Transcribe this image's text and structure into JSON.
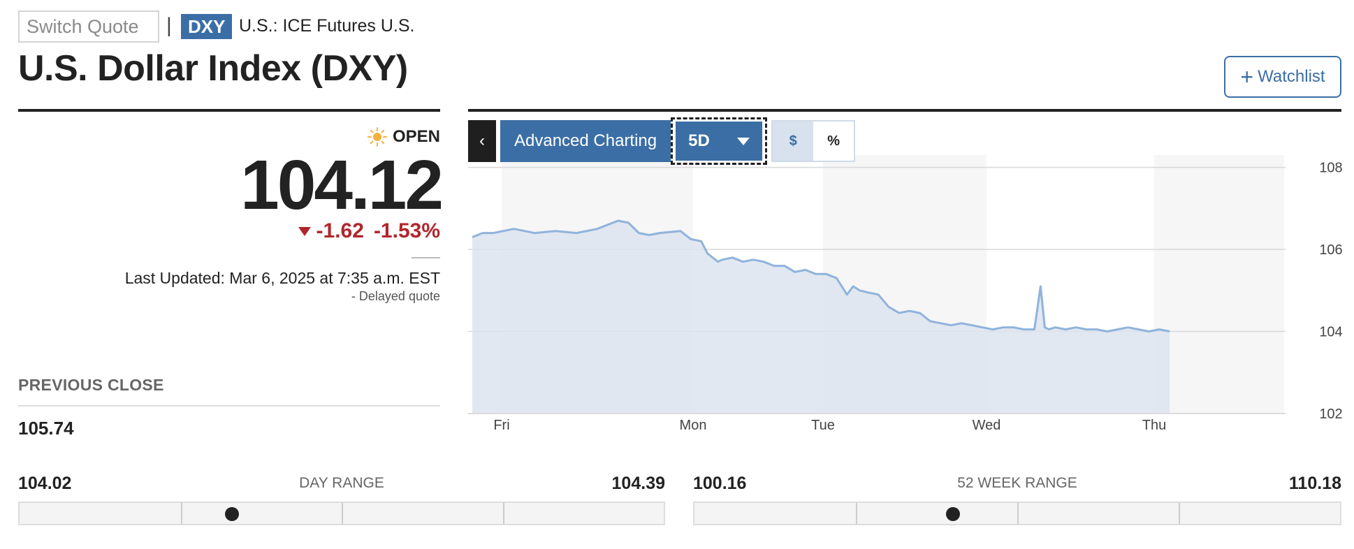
{
  "header": {
    "switch_placeholder": "Switch Quote",
    "separator": "|",
    "ticker": "DXY",
    "exchange": "U.S.: ICE Futures U.S.",
    "title": "U.S. Dollar Index (DXY)",
    "watchlist_label": "Watchlist",
    "watchlist_icon": "plus-icon"
  },
  "quote": {
    "status": "OPEN",
    "status_icon": "sun-icon",
    "price": "104.12",
    "change": "-1.62",
    "change_percent": "-1.53%",
    "direction_icon": "down-triangle-icon",
    "last_updated": "Last Updated: Mar 6, 2025 at 7:35 a.m. EST",
    "delayed": "-  Delayed quote",
    "previous_close_label": "PREVIOUS CLOSE",
    "previous_close": "105.74"
  },
  "day_range": {
    "label": "DAY RANGE",
    "low": "104.02",
    "high": "104.39",
    "position": 0.33
  },
  "week52_range": {
    "label": "52 WEEK RANGE",
    "low": "100.16",
    "high": "110.18",
    "position": 0.4
  },
  "toolbar": {
    "collapse_icon": "chevron-left-icon",
    "advanced_label": "Advanced Charting",
    "range_value": "5D",
    "unit_options": [
      "$",
      "%"
    ],
    "unit_selected": "$"
  },
  "colors": {
    "accent": "#3b6ea5",
    "down": "#b0262c",
    "line": "#8fb3dc",
    "area": "#dde4ee"
  },
  "chart_data": {
    "type": "area",
    "x_ticks": [
      "Fri",
      "Mon",
      "Tue",
      "Wed",
      "Thu"
    ],
    "y_ticks": [
      "108",
      "106",
      "104",
      "102"
    ],
    "ylim": [
      102,
      108.3
    ],
    "grid": true,
    "series": [
      {
        "x": [
          0,
          0.5,
          1,
          2,
          3,
          4,
          5,
          6,
          7,
          7.5,
          8,
          8.5,
          9,
          10,
          10.5,
          11,
          11.3,
          11.8,
          12,
          12.5,
          13,
          13.5,
          14,
          14.5,
          15,
          15.5,
          16,
          16.5,
          17,
          17.5,
          18,
          18.3,
          18.6,
          19,
          19.5,
          20,
          20.5,
          21,
          21.5,
          22,
          22.5,
          23,
          23.5,
          24,
          24.5,
          25,
          25.5,
          26,
          26.5,
          27,
          27.3,
          27.5,
          27.7,
          28,
          28.5,
          29,
          29.5,
          30,
          30.5,
          31,
          31.5,
          32,
          32.5,
          33,
          33.5
        ],
        "values": [
          106.3,
          106.4,
          106.4,
          106.5,
          106.4,
          106.45,
          106.4,
          106.5,
          106.7,
          106.65,
          106.4,
          106.35,
          106.4,
          106.45,
          106.25,
          106.2,
          105.9,
          105.7,
          105.75,
          105.8,
          105.7,
          105.75,
          105.7,
          105.6,
          105.6,
          105.45,
          105.5,
          105.4,
          105.4,
          105.3,
          104.9,
          105.1,
          105.0,
          104.95,
          104.9,
          104.6,
          104.45,
          104.5,
          104.45,
          104.25,
          104.2,
          104.15,
          104.2,
          104.15,
          104.1,
          104.05,
          104.1,
          104.1,
          104.05,
          104.05,
          105.1,
          104.1,
          104.05,
          104.1,
          104.05,
          104.1,
          104.05,
          104.05,
          104.0,
          104.05,
          104.1,
          104.05,
          104.0,
          104.05,
          104.0
        ]
      }
    ]
  }
}
